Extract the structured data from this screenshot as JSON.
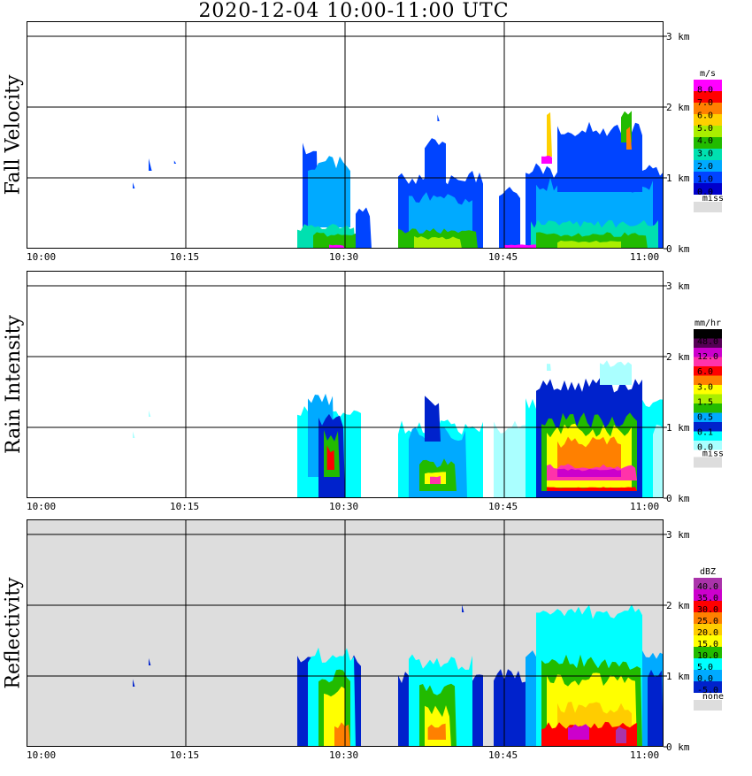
{
  "title": "2020-12-04   10:00-11:00 UTC",
  "x_axis": {
    "ticks": [
      "10:00",
      "10:15",
      "10:30",
      "10:45",
      "11:00"
    ]
  },
  "y_axis": {
    "ticks": [
      "0 km",
      "1 km",
      "2 km",
      "3 km"
    ]
  },
  "chart_data": [
    {
      "type": "heatmap",
      "name": "fall_velocity",
      "ylabel": "Fall Velocity",
      "colorbar_unit": "m/s",
      "colorbar_ticks": [
        "8.0",
        "7.0",
        "6.0",
        "5.0",
        "4.0",
        "3.0",
        "2.0",
        "1.0",
        "0.0"
      ],
      "colorbar_colors": [
        "#ff00ff",
        "#ff0000",
        "#ff8000",
        "#ffd000",
        "#aaee00",
        "#22bb00",
        "#00e0b0",
        "#00aaff",
        "#0044ff",
        "#0000cc"
      ],
      "missing_label": "miss",
      "missing_color": "#dddddd",
      "background": "#ffffff",
      "xlim": [
        "10:00",
        "11:00"
      ],
      "ylim_km": [
        0,
        3.2
      ],
      "cells": [
        {
          "t0": 26.0,
          "t1": 27.5,
          "h0": 0.0,
          "h1": 1.4,
          "c": 8
        },
        {
          "t0": 26.5,
          "t1": 30.5,
          "h0": 0.3,
          "h1": 1.2,
          "c": 7
        },
        {
          "t0": 25.5,
          "t1": 31.0,
          "h0": 0.0,
          "h1": 0.3,
          "c": 6
        },
        {
          "t0": 27.0,
          "t1": 31.0,
          "h0": 0.0,
          "h1": 0.2,
          "c": 5
        },
        {
          "t0": 31.0,
          "t1": 32.5,
          "h0": 0.0,
          "h1": 0.5,
          "c": 8
        },
        {
          "t0": 35.0,
          "t1": 43.0,
          "h0": 0.0,
          "h1": 1.0,
          "c": 8
        },
        {
          "t0": 36.0,
          "t1": 42.0,
          "h0": 0.1,
          "h1": 0.7,
          "c": 7
        },
        {
          "t0": 35.0,
          "t1": 42.5,
          "h0": 0.0,
          "h1": 0.25,
          "c": 5
        },
        {
          "t0": 36.5,
          "t1": 41.0,
          "h0": 0.0,
          "h1": 0.15,
          "c": 4
        },
        {
          "t0": 37.5,
          "t1": 39.5,
          "h0": 0.9,
          "h1": 1.5,
          "c": 8
        },
        {
          "t0": 44.5,
          "t1": 46.5,
          "h0": 0.0,
          "h1": 0.8,
          "c": 8
        },
        {
          "t0": 47.0,
          "t1": 60.0,
          "h0": 0.0,
          "h1": 1.1,
          "c": 8
        },
        {
          "t0": 48.0,
          "t1": 59.0,
          "h0": 0.1,
          "h1": 0.9,
          "c": 7
        },
        {
          "t0": 50.0,
          "t1": 58.0,
          "h0": 0.8,
          "h1": 1.7,
          "c": 8
        },
        {
          "t0": 47.5,
          "t1": 59.5,
          "h0": 0.0,
          "h1": 0.35,
          "c": 6
        },
        {
          "t0": 48.0,
          "t1": 58.5,
          "h0": 0.0,
          "h1": 0.2,
          "c": 5
        },
        {
          "t0": 50.0,
          "t1": 56.0,
          "h0": 0.0,
          "h1": 0.1,
          "c": 4
        },
        {
          "t0": 56.0,
          "t1": 57.0,
          "h0": 1.5,
          "h1": 1.9,
          "c": 5
        },
        {
          "t0": 56.5,
          "t1": 57.0,
          "h0": 1.4,
          "h1": 1.7,
          "c": 2
        },
        {
          "t0": 49.0,
          "t1": 49.5,
          "h0": 1.3,
          "h1": 1.9,
          "c": 3
        },
        {
          "t0": 48.5,
          "t1": 49.5,
          "h0": 1.2,
          "h1": 1.3,
          "c": 0
        },
        {
          "t0": 45.0,
          "t1": 48.0,
          "h0": 0.0,
          "h1": 0.05,
          "c": 0
        },
        {
          "t0": 28.5,
          "t1": 30.0,
          "h0": 0.0,
          "h1": 0.05,
          "c": 0
        },
        {
          "t0": 11.5,
          "t1": 11.8,
          "h0": 1.1,
          "h1": 1.25,
          "c": 8
        },
        {
          "t0": 10.0,
          "t1": 10.2,
          "h0": 0.85,
          "h1": 0.95,
          "c": 8
        },
        {
          "t0": 13.9,
          "t1": 14.1,
          "h0": 1.2,
          "h1": 1.25,
          "c": 8
        },
        {
          "t0": 38.7,
          "t1": 38.9,
          "h0": 1.8,
          "h1": 1.9,
          "c": 8
        }
      ]
    },
    {
      "type": "heatmap",
      "name": "rain_intensity",
      "ylabel": "Rain Intensity",
      "colorbar_unit": "mm/hr",
      "colorbar_ticks": [
        "48.0",
        "12.0",
        "6.0",
        "3.0",
        "1.5",
        "0.5",
        "0.1",
        "0.0"
      ],
      "colorbar_colors": [
        "#000000",
        "#550055",
        "#cc00cc",
        "#ff33aa",
        "#ff0000",
        "#ff8000",
        "#ffff00",
        "#aaee00",
        "#22bb00",
        "#00aaff",
        "#0022cc",
        "#00ffff",
        "#aaffff"
      ],
      "missing_label": "miss",
      "missing_color": "#dddddd",
      "background": "#ffffff",
      "xlim": [
        "10:00",
        "11:00"
      ],
      "ylim_km": [
        0,
        3.2
      ],
      "cells": [
        {
          "t0": 25.5,
          "t1": 31.5,
          "h0": 0.0,
          "h1": 1.2,
          "c": 11
        },
        {
          "t0": 26.5,
          "t1": 29.0,
          "h0": 0.3,
          "h1": 1.4,
          "c": 9
        },
        {
          "t0": 27.5,
          "t1": 30.0,
          "h0": 0.0,
          "h1": 1.1,
          "c": 10
        },
        {
          "t0": 28.0,
          "t1": 29.5,
          "h0": 0.3,
          "h1": 0.9,
          "c": 8
        },
        {
          "t0": 28.3,
          "t1": 29.0,
          "h0": 0.4,
          "h1": 0.7,
          "c": 4
        },
        {
          "t0": 35.0,
          "t1": 43.0,
          "h0": 0.0,
          "h1": 1.0,
          "c": 11
        },
        {
          "t0": 36.0,
          "t1": 41.5,
          "h0": 0.0,
          "h1": 0.9,
          "c": 9
        },
        {
          "t0": 37.0,
          "t1": 40.5,
          "h0": 0.1,
          "h1": 0.5,
          "c": 8
        },
        {
          "t0": 37.5,
          "t1": 39.5,
          "h0": 0.2,
          "h1": 0.35,
          "c": 6
        },
        {
          "t0": 38.0,
          "t1": 39.0,
          "h0": 0.2,
          "h1": 0.3,
          "c": 3
        },
        {
          "t0": 37.5,
          "t1": 39.0,
          "h0": 0.8,
          "h1": 1.4,
          "c": 10
        },
        {
          "t0": 44.0,
          "t1": 47.5,
          "h0": 0.0,
          "h1": 1.0,
          "c": 12
        },
        {
          "t0": 47.0,
          "t1": 60.0,
          "h0": 0.0,
          "h1": 1.3,
          "c": 11
        },
        {
          "t0": 48.0,
          "t1": 58.0,
          "h0": 0.0,
          "h1": 1.6,
          "c": 10
        },
        {
          "t0": 48.5,
          "t1": 57.5,
          "h0": 0.1,
          "h1": 1.1,
          "c": 8
        },
        {
          "t0": 49.0,
          "t1": 57.0,
          "h0": 0.15,
          "h1": 0.95,
          "c": 6
        },
        {
          "t0": 50.0,
          "t1": 56.0,
          "h0": 0.3,
          "h1": 0.8,
          "c": 5
        },
        {
          "t0": 49.0,
          "t1": 57.5,
          "h0": 0.25,
          "h1": 0.45,
          "c": 3
        },
        {
          "t0": 50.0,
          "t1": 56.0,
          "h0": 0.3,
          "h1": 0.4,
          "c": 2
        },
        {
          "t0": 49.0,
          "t1": 57.5,
          "h0": 0.1,
          "h1": 0.15,
          "c": 4
        },
        {
          "t0": 59.0,
          "t1": 60.0,
          "h0": 0.0,
          "h1": 1.0,
          "c": 12
        },
        {
          "t0": 11.5,
          "t1": 11.7,
          "h0": 1.15,
          "h1": 1.25,
          "c": 12
        },
        {
          "t0": 10.0,
          "t1": 10.2,
          "h0": 0.85,
          "h1": 0.95,
          "c": 12
        },
        {
          "t0": 49.0,
          "t1": 49.4,
          "h0": 1.8,
          "h1": 1.9,
          "c": 12
        },
        {
          "t0": 54.0,
          "t1": 57.0,
          "h0": 1.6,
          "h1": 1.9,
          "c": 12
        }
      ]
    },
    {
      "type": "heatmap",
      "name": "reflectivity",
      "ylabel": "Reflectivity",
      "colorbar_unit": "dBZ",
      "colorbar_ticks": [
        "40.0",
        "35.0",
        "30.0",
        "25.0",
        "20.0",
        "15.0",
        "10.0",
        "5.0",
        "0.0",
        "-5.0"
      ],
      "colorbar_colors": [
        "#aa33aa",
        "#cc00cc",
        "#ff0000",
        "#ff8000",
        "#ffcc00",
        "#ffff00",
        "#22bb00",
        "#00ffff",
        "#00aaff",
        "#0022cc"
      ],
      "missing_label": "none",
      "missing_color": "#dddddd",
      "background": "#dddddd",
      "xlim": [
        "10:00",
        "11:00"
      ],
      "ylim_km": [
        0,
        3.2
      ],
      "cells": [
        {
          "t0": 25.5,
          "t1": 31.5,
          "h0": 0.0,
          "h1": 1.2,
          "c": 9
        },
        {
          "t0": 26.5,
          "t1": 31.0,
          "h0": 0.0,
          "h1": 1.3,
          "c": 7
        },
        {
          "t0": 27.5,
          "t1": 30.5,
          "h0": 0.0,
          "h1": 1.0,
          "c": 6
        },
        {
          "t0": 28.0,
          "t1": 30.0,
          "h0": 0.0,
          "h1": 0.8,
          "c": 5
        },
        {
          "t0": 29.0,
          "t1": 30.5,
          "h0": 0.0,
          "h1": 0.3,
          "c": 3
        },
        {
          "t0": 35.0,
          "t1": 43.0,
          "h0": 0.0,
          "h1": 1.0,
          "c": 9
        },
        {
          "t0": 36.0,
          "t1": 42.0,
          "h0": 0.0,
          "h1": 1.2,
          "c": 7
        },
        {
          "t0": 37.0,
          "t1": 40.5,
          "h0": 0.0,
          "h1": 0.8,
          "c": 6
        },
        {
          "t0": 37.5,
          "t1": 40.0,
          "h0": 0.0,
          "h1": 0.5,
          "c": 5
        },
        {
          "t0": 37.8,
          "t1": 39.5,
          "h0": 0.1,
          "h1": 0.3,
          "c": 3
        },
        {
          "t0": 44.0,
          "t1": 47.5,
          "h0": 0.0,
          "h1": 1.0,
          "c": 9
        },
        {
          "t0": 47.0,
          "t1": 60.0,
          "h0": 0.0,
          "h1": 1.3,
          "c": 8
        },
        {
          "t0": 48.0,
          "t1": 58.0,
          "h0": 0.0,
          "h1": 1.9,
          "c": 7
        },
        {
          "t0": 48.5,
          "t1": 58.0,
          "h0": 0.0,
          "h1": 1.2,
          "c": 6
        },
        {
          "t0": 49.0,
          "t1": 57.5,
          "h0": 0.0,
          "h1": 0.95,
          "c": 5
        },
        {
          "t0": 50.0,
          "t1": 57.0,
          "h0": 0.05,
          "h1": 0.55,
          "c": 4
        },
        {
          "t0": 48.5,
          "t1": 57.5,
          "h0": 0.0,
          "h1": 0.3,
          "c": 2
        },
        {
          "t0": 51.0,
          "t1": 53.0,
          "h0": 0.1,
          "h1": 0.3,
          "c": 1
        },
        {
          "t0": 55.5,
          "t1": 56.5,
          "h0": 0.05,
          "h1": 0.25,
          "c": 0
        },
        {
          "t0": 58.5,
          "t1": 60.0,
          "h0": 0.0,
          "h1": 1.0,
          "c": 9
        },
        {
          "t0": 11.5,
          "t1": 11.7,
          "h0": 1.15,
          "h1": 1.25,
          "c": 9
        },
        {
          "t0": 10.0,
          "t1": 10.2,
          "h0": 0.85,
          "h1": 0.95,
          "c": 9
        },
        {
          "t0": 41.0,
          "t1": 41.2,
          "h0": 1.9,
          "h1": 2.0,
          "c": 9
        }
      ]
    }
  ]
}
